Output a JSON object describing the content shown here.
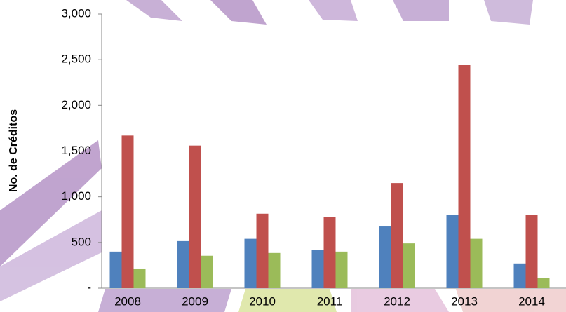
{
  "chart_data": {
    "type": "bar",
    "y_label": "No. de Créditos",
    "categories": [
      "2008",
      "2009",
      "2010",
      "2011",
      "2012",
      "2013",
      "2014"
    ],
    "series": [
      {
        "color": "#4f81bd",
        "values": [
          400,
          515,
          540,
          415,
          675,
          805,
          270
        ]
      },
      {
        "color": "#c0504d",
        "values": [
          1670,
          1560,
          815,
          775,
          1150,
          2440,
          805
        ]
      },
      {
        "color": "#9bbb59",
        "values": [
          215,
          355,
          385,
          400,
          490,
          540,
          115
        ]
      }
    ],
    "ylim": [
      0,
      3000
    ],
    "yticks": [
      {
        "value": 0,
        "label": "-"
      },
      500,
      {
        "value": 1000,
        "label": "1,000"
      },
      {
        "value": 1500,
        "label": "1,500"
      },
      {
        "value": 2000,
        "label": "2,000"
      },
      {
        "value": 2500,
        "label": "2,500"
      },
      {
        "value": 3000,
        "label": "3,000"
      }
    ],
    "grid": false
  }
}
